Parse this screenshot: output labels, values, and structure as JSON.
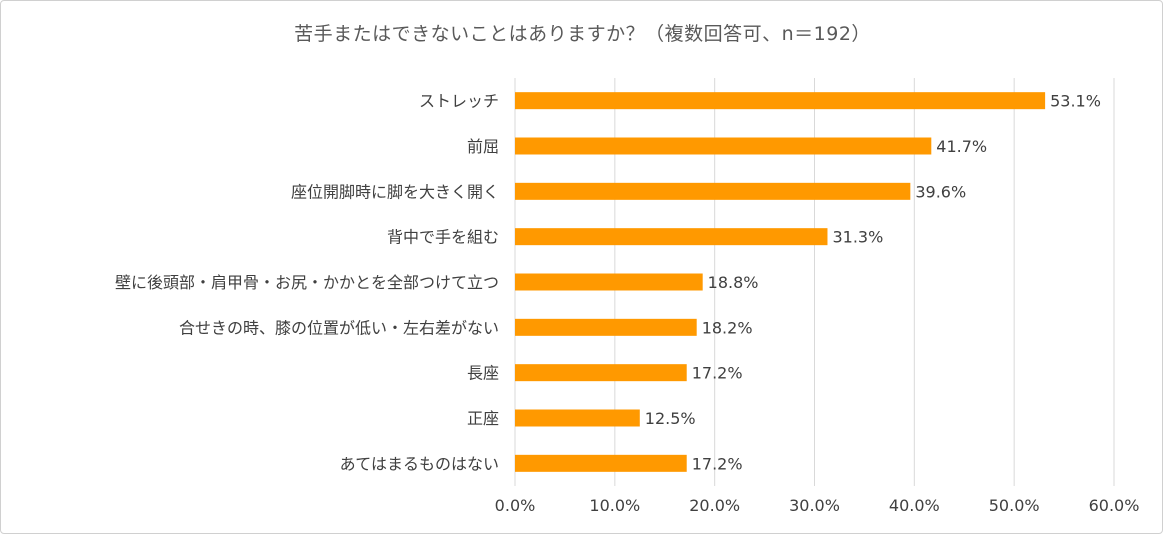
{
  "chart_data": {
    "type": "bar",
    "orientation": "horizontal",
    "title": "苦手またはできないことはありますか？（複数回答可、n＝192）",
    "categories": [
      "ストレッチ",
      "前屈",
      "座位開脚時に脚を大きく開く",
      "背中で手を組む",
      "壁に後頭部・肩甲骨・お尻・かかとを全部つけて立つ",
      "合せきの時、膝の位置が低い・左右差がない",
      "長座",
      "正座",
      "あてはまるものはない"
    ],
    "values": [
      53.1,
      41.7,
      39.6,
      31.3,
      18.8,
      18.2,
      17.2,
      12.5,
      17.2
    ],
    "value_labels": [
      "53.1%",
      "41.7%",
      "39.6%",
      "31.3%",
      "18.8%",
      "18.2%",
      "17.2%",
      "12.5%",
      "17.2%"
    ],
    "xlim": [
      0,
      60
    ],
    "x_ticks": [
      "0.0%",
      "10.0%",
      "20.0%",
      "30.0%",
      "40.0%",
      "50.0%",
      "60.0%"
    ],
    "grid": true,
    "bar_color": "#FF9900",
    "grid_color": "#d9d9d9"
  }
}
